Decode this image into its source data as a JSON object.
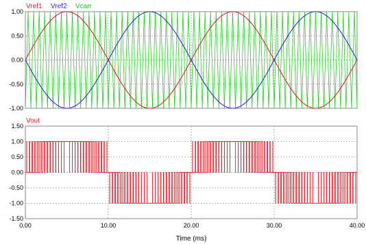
{
  "chart_data": [
    {
      "type": "line",
      "panel": "top",
      "xlim": [
        0,
        40
      ],
      "ylim": [
        -1,
        1
      ],
      "yticks": [
        "1.00",
        "0.50",
        "0.00",
        "-0.50",
        "-1.00"
      ],
      "grid": true,
      "legend_placement": "top-left",
      "carrier_cycles": 60,
      "series": [
        {
          "name": "Vref1",
          "color": "#e0202a",
          "function": "sin(2*pi*50*t)",
          "amplitude": 1.0,
          "frequency_hz": 50,
          "phase_deg": 0
        },
        {
          "name": "Vref2",
          "color": "#2a2ae0",
          "function": "-sin(2*pi*50*t)",
          "amplitude": 1.0,
          "frequency_hz": 50,
          "phase_deg": 180
        },
        {
          "name": "Vcarr",
          "color": "#20d020",
          "function": "triangle",
          "amplitude": 1.0,
          "frequency_hz": 1500
        }
      ]
    },
    {
      "type": "line",
      "panel": "bottom",
      "xlim": [
        0,
        40
      ],
      "ylim": [
        -1.5,
        1.5
      ],
      "yticks": [
        "1.50",
        "1.00",
        "0.50",
        "0.00",
        "-0.50",
        "-1.00",
        "-1.50"
      ],
      "xticks": [
        "0.00",
        "10.00",
        "20.00",
        "30.00",
        "40.00"
      ],
      "xlabel": "Time (ms)",
      "grid": true,
      "legend_placement": "top-left",
      "series": [
        {
          "name": "Vout",
          "color": "#e0202a",
          "description": "unipolar SPWM output, levels +1 / 0 / -1"
        }
      ]
    }
  ]
}
